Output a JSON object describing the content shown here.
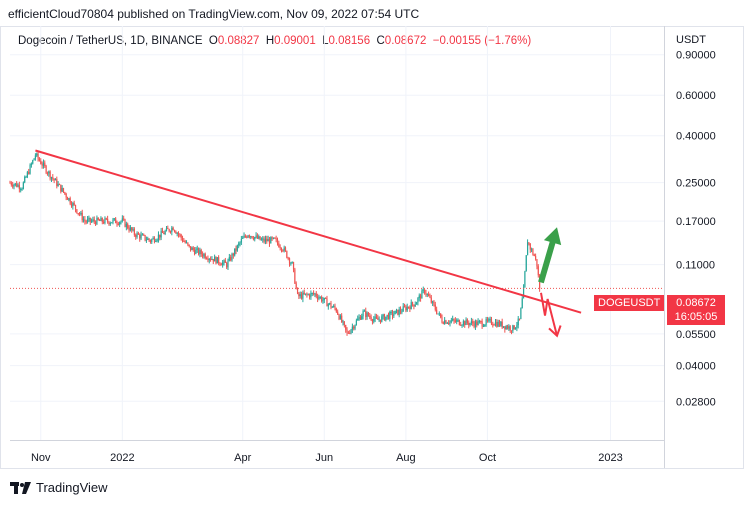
{
  "publisher": "efficientCloud70804 published on TradingView.com, Nov 09, 2022 07:54 UTC",
  "legend": {
    "symbol": "Dogecoin / TetherUS, 1D, BINANCE",
    "o_label": "O",
    "o_value": "0.08827",
    "h_label": "H",
    "h_value": "0.09001",
    "l_label": "L",
    "l_value": "0.08156",
    "c_label": "C",
    "c_value": "0.08672",
    "change": "−0.00155 (−1.76%)"
  },
  "currency": "USDT",
  "price_tag": {
    "symbol": "DOGEUSDT",
    "price": "0.08672",
    "countdown": "16:05:05"
  },
  "brand": "TradingView",
  "colors": {
    "up": "#26a69a",
    "down": "#ef5350",
    "trendline": "#f23645",
    "arrow_up": "#3aa04a",
    "arrow_down": "#f23645"
  },
  "chart_data": {
    "type": "candlestick",
    "y_scale": "log",
    "ylim": [
      0.019,
      1.2
    ],
    "y_ticks": [
      "0.90000",
      "0.60000",
      "0.40000",
      "0.25000",
      "0.17000",
      "0.11000",
      "0.05500",
      "0.04000",
      "0.02800"
    ],
    "y_tick_values": [
      0.9,
      0.6,
      0.4,
      0.25,
      0.17,
      0.11,
      0.055,
      0.04,
      0.028
    ],
    "x_ticks": [
      "Nov",
      "2022",
      "Apr",
      "Jun",
      "Aug",
      "Oct",
      "2023"
    ],
    "x_tick_dates": [
      "2021-11-01",
      "2022-01-01",
      "2022-04-01",
      "2022-06-01",
      "2022-08-01",
      "2022-10-01",
      "2023-01-01"
    ],
    "xlim": [
      "2021-10-09",
      "2023-02-10"
    ],
    "last_close": 0.08672,
    "price_path": [
      [
        "2021-10-09",
        0.25
      ],
      [
        "2021-10-18",
        0.24
      ],
      [
        "2021-10-28",
        0.33
      ],
      [
        "2021-11-08",
        0.27
      ],
      [
        "2021-11-20",
        0.22
      ],
      [
        "2021-12-04",
        0.17
      ],
      [
        "2021-12-20",
        0.17
      ],
      [
        "2022-01-01",
        0.17
      ],
      [
        "2022-01-10",
        0.15
      ],
      [
        "2022-01-22",
        0.14
      ],
      [
        "2022-02-08",
        0.16
      ],
      [
        "2022-02-20",
        0.13
      ],
      [
        "2022-03-05",
        0.12
      ],
      [
        "2022-03-20",
        0.11
      ],
      [
        "2022-03-31",
        0.14
      ],
      [
        "2022-04-05",
        0.15
      ],
      [
        "2022-04-15",
        0.14
      ],
      [
        "2022-04-25",
        0.14
      ],
      [
        "2022-05-01",
        0.13
      ],
      [
        "2022-05-08",
        0.11
      ],
      [
        "2022-05-12",
        0.08
      ],
      [
        "2022-05-25",
        0.082
      ],
      [
        "2022-06-10",
        0.07
      ],
      [
        "2022-06-18",
        0.055
      ],
      [
        "2022-06-30",
        0.068
      ],
      [
        "2022-07-10",
        0.063
      ],
      [
        "2022-07-25",
        0.068
      ],
      [
        "2022-08-08",
        0.075
      ],
      [
        "2022-08-15",
        0.085
      ],
      [
        "2022-08-28",
        0.063
      ],
      [
        "2022-09-10",
        0.062
      ],
      [
        "2022-09-22",
        0.061
      ],
      [
        "2022-10-05",
        0.062
      ],
      [
        "2022-10-20",
        0.058
      ],
      [
        "2022-10-25",
        0.063
      ],
      [
        "2022-10-28",
        0.085
      ],
      [
        "2022-10-31",
        0.14
      ],
      [
        "2022-11-02",
        0.13
      ],
      [
        "2022-11-05",
        0.12
      ],
      [
        "2022-11-07",
        0.11
      ],
      [
        "2022-11-09",
        0.08672
      ]
    ],
    "trendline": {
      "start": [
        "2021-10-28",
        0.345
      ],
      "end": [
        "2022-12-10",
        0.068
      ]
    },
    "arrow_up": {
      "from": [
        "2022-11-10",
        0.092
      ],
      "to": [
        "2022-11-22",
        0.16
      ]
    },
    "arrow_down": {
      "points": [
        [
          "2022-11-10",
          0.083
        ],
        [
          "2022-11-13",
          0.066
        ],
        [
          "2022-11-15",
          0.078
        ],
        [
          "2022-11-22",
          0.054
        ]
      ]
    }
  }
}
